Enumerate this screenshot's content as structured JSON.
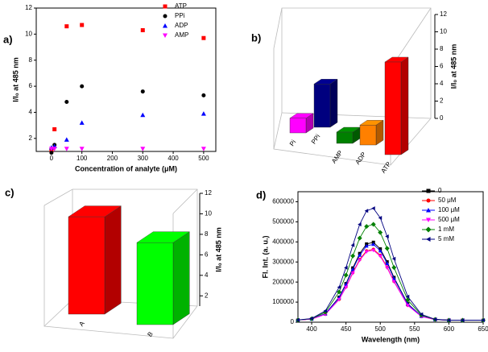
{
  "chart_data": [
    {
      "type": "scatter",
      "panel": "a)",
      "xlabel": "Concentration of analyte (μM)",
      "ylabel": "I/I₀ at 485 nm",
      "x": [
        0,
        10,
        50,
        100,
        300,
        500
      ],
      "xlim": [
        -50,
        540
      ],
      "xticks": [
        0,
        100,
        200,
        300,
        400,
        500
      ],
      "ylim": [
        1,
        12
      ],
      "yticks": [
        2,
        4,
        6,
        8,
        10,
        12
      ],
      "series": [
        {
          "name": "ATP",
          "color": "#ff0000",
          "marker": "square",
          "values": [
            1.1,
            2.7,
            10.6,
            10.7,
            10.3,
            9.7
          ]
        },
        {
          "name": "PPi",
          "color": "#000000",
          "marker": "circle",
          "values": [
            0.9,
            1.5,
            4.8,
            6.0,
            5.6,
            5.3
          ]
        },
        {
          "name": "ADP",
          "color": "#0000ff",
          "marker": "triangle",
          "values": [
            1.3,
            1.4,
            1.9,
            3.2,
            3.8,
            3.9
          ]
        },
        {
          "name": "AMP",
          "color": "#ff00ff",
          "marker": "down-triangle",
          "values": [
            1.2,
            1.2,
            1.2,
            1.2,
            1.2,
            1.2
          ]
        }
      ]
    },
    {
      "type": "bar3d",
      "panel": "b)",
      "ylabel": "I/I₀ at 485 nm",
      "categories": [
        "Pi",
        "PPi",
        "AMP",
        "ADP",
        "ATP"
      ],
      "values": [
        1.7,
        5.0,
        1.3,
        2.3,
        10.7
      ],
      "colors": [
        "#ff00ff",
        "#00007f",
        "#008000",
        "#ff8000",
        "#ff0000"
      ],
      "ylim": [
        0,
        12
      ],
      "yticks": [
        0,
        2,
        4,
        6,
        8,
        10,
        12
      ]
    },
    {
      "type": "bar3d",
      "panel": "c)",
      "ylabel": "I/I₀ at 485 nm",
      "categories": [
        "A",
        "B"
      ],
      "values": [
        10.5,
        9.0
      ],
      "colors": [
        "#ff0000",
        "#00ff00"
      ],
      "ylim": [
        1,
        12
      ],
      "yticks": [
        2,
        4,
        6,
        8,
        10,
        12
      ]
    },
    {
      "type": "line",
      "panel": "d)",
      "xlabel": "Wavelength (nm)",
      "ylabel": "Fl. Int. (a. u.)",
      "x": [
        380,
        400,
        420,
        440,
        450,
        460,
        470,
        480,
        490,
        500,
        510,
        520,
        540,
        560,
        580,
        600,
        620,
        650
      ],
      "xlim": [
        380,
        650
      ],
      "xticks": [
        400,
        450,
        500,
        550,
        600,
        650
      ],
      "ylim": [
        0,
        650000
      ],
      "yticks": [
        0,
        100000,
        200000,
        300000,
        400000,
        500000,
        600000
      ],
      "series": [
        {
          "name": "0",
          "color": "#000000",
          "marker": "square",
          "values": [
            10700,
            15900,
            42400,
            124300,
            192100,
            270100,
            342300,
            389500,
            398000,
            364900,
            300600,
            222900,
            91900,
            30300,
            13100,
            10000,
            10000,
            10000
          ]
        },
        {
          "name": "50 μM",
          "color": "#ff0000",
          "marker": "circle",
          "values": [
            10600,
            15300,
            39500,
            114000,
            175800,
            246800,
            312500,
            355400,
            363200,
            333100,
            274500,
            203800,
            84600,
            28500,
            12800,
            10000,
            10000,
            10000
          ]
        },
        {
          "name": "100 μM",
          "color": "#0000ff",
          "marker": "triangle",
          "values": [
            10600,
            15700,
            41500,
            121300,
            187500,
            263500,
            333800,
            379700,
            388100,
            355800,
            293100,
            217500,
            89800,
            29800,
            13000,
            10000,
            10000,
            10000
          ]
        },
        {
          "name": "500 μM",
          "color": "#ff00ff",
          "marker": "down-triangle",
          "values": [
            10600,
            15300,
            39100,
            112600,
            173500,
            243500,
            308200,
            350600,
            358300,
            328500,
            270800,
            201100,
            83500,
            28200,
            12800,
            10000,
            10000,
            10000
          ]
        },
        {
          "name": "1 mM",
          "color": "#008000",
          "marker": "diamond",
          "values": [
            10800,
            17200,
            49800,
            150600,
            234200,
            330200,
            419000,
            477000,
            487600,
            446800,
            367600,
            272100,
            110800,
            35000,
            13800,
            10000,
            10000,
            10000
          ]
        },
        {
          "name": "5 mM",
          "color": "#000080",
          "marker": "left-triangle",
          "values": [
            11000,
            18400,
            56500,
            174100,
            271500,
            383500,
            487100,
            554900,
            567200,
            519600,
            427200,
            315800,
            127600,
            39100,
            14500,
            10000,
            10000,
            10000
          ]
        }
      ]
    }
  ]
}
